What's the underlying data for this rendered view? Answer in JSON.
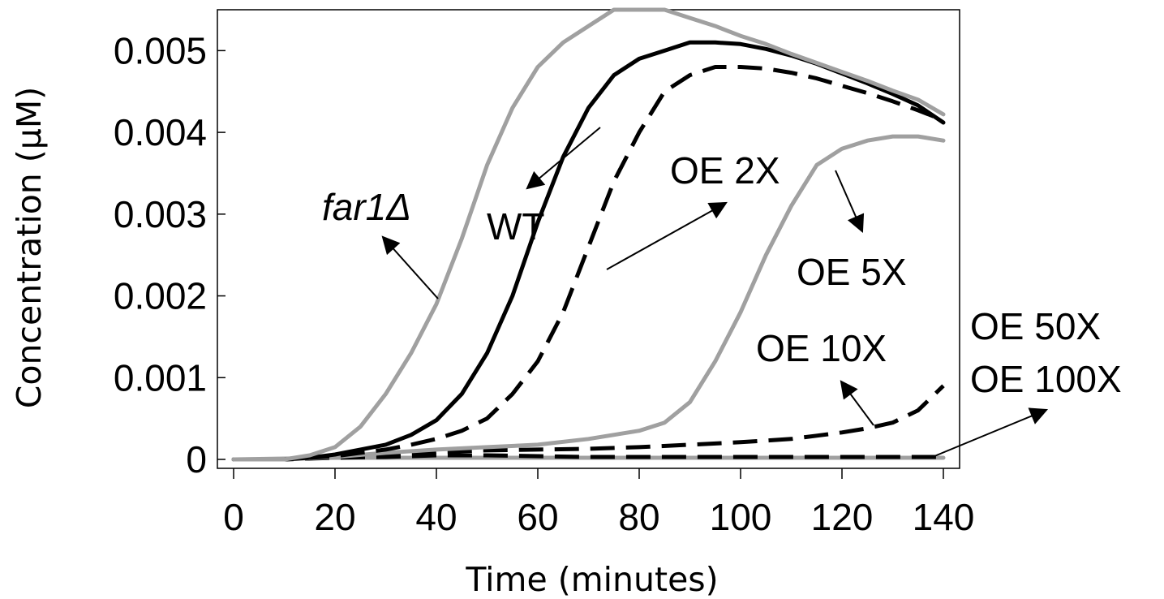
{
  "chart_data": {
    "type": "line",
    "title": "",
    "xlabel": "Time (minutes)",
    "ylabel": "Concentration (μM)",
    "xlim": [
      0,
      140
    ],
    "ylim": [
      0,
      0.0055
    ],
    "x_ticks": [
      "0",
      "20",
      "40",
      "60",
      "80",
      "100",
      "120",
      "140"
    ],
    "y_ticks": [
      "0",
      "0.001",
      "0.002",
      "0.003",
      "0.004",
      "0.005"
    ],
    "grid": false,
    "legend": "none",
    "series": [
      {
        "name": "far1Δ",
        "color": "#a0a0a0",
        "style": "solid",
        "points": [
          [
            0,
            0
          ],
          [
            10,
            0
          ],
          [
            15,
            5e-05
          ],
          [
            20,
            0.00015
          ],
          [
            25,
            0.0004
          ],
          [
            30,
            0.0008
          ],
          [
            35,
            0.0013
          ],
          [
            40,
            0.0019
          ],
          [
            45,
            0.0027
          ],
          [
            50,
            0.0036
          ],
          [
            55,
            0.0043
          ],
          [
            60,
            0.0048
          ],
          [
            65,
            0.0051
          ],
          [
            70,
            0.0053
          ],
          [
            75,
            0.0055
          ],
          [
            80,
            0.0055
          ],
          [
            85,
            0.0055
          ],
          [
            90,
            0.0054
          ],
          [
            95,
            0.0053
          ],
          [
            100,
            0.00518
          ],
          [
            105,
            0.00508
          ],
          [
            110,
            0.00496
          ],
          [
            115,
            0.00485
          ],
          [
            120,
            0.00474
          ],
          [
            125,
            0.00463
          ],
          [
            130,
            0.00451
          ],
          [
            135,
            0.0044
          ],
          [
            140,
            0.00422
          ]
        ]
      },
      {
        "name": "WT",
        "color": "#000000",
        "style": "solid",
        "points": [
          [
            0,
            0
          ],
          [
            10,
            0
          ],
          [
            15,
            2e-05
          ],
          [
            20,
            6e-05
          ],
          [
            25,
            0.00012
          ],
          [
            30,
            0.00018
          ],
          [
            35,
            0.0003
          ],
          [
            40,
            0.00048
          ],
          [
            45,
            0.0008
          ],
          [
            50,
            0.0013
          ],
          [
            55,
            0.002
          ],
          [
            60,
            0.0029
          ],
          [
            65,
            0.0037
          ],
          [
            70,
            0.0043
          ],
          [
            75,
            0.0047
          ],
          [
            80,
            0.0049
          ],
          [
            85,
            0.005
          ],
          [
            90,
            0.0051
          ],
          [
            95,
            0.0051
          ],
          [
            100,
            0.00508
          ],
          [
            105,
            0.00502
          ],
          [
            110,
            0.00494
          ],
          [
            115,
            0.00484
          ],
          [
            120,
            0.00472
          ],
          [
            125,
            0.0046
          ],
          [
            130,
            0.00447
          ],
          [
            135,
            0.00433
          ],
          [
            140,
            0.00412
          ]
        ]
      },
      {
        "name": "OE 2X",
        "color": "#000000",
        "style": "dashed",
        "points": [
          [
            0,
            0
          ],
          [
            10,
            0
          ],
          [
            15,
            2e-05
          ],
          [
            20,
            4e-05
          ],
          [
            25,
            8e-05
          ],
          [
            30,
            0.00012
          ],
          [
            35,
            0.00018
          ],
          [
            40,
            0.00025
          ],
          [
            45,
            0.00035
          ],
          [
            50,
            0.0005
          ],
          [
            55,
            0.0008
          ],
          [
            60,
            0.0012
          ],
          [
            65,
            0.0018
          ],
          [
            70,
            0.0026
          ],
          [
            75,
            0.0034
          ],
          [
            80,
            0.004
          ],
          [
            85,
            0.0045
          ],
          [
            90,
            0.0047
          ],
          [
            95,
            0.0048
          ],
          [
            100,
            0.0048
          ],
          [
            105,
            0.00478
          ],
          [
            110,
            0.00473
          ],
          [
            115,
            0.00466
          ],
          [
            120,
            0.00457
          ],
          [
            125,
            0.00448
          ],
          [
            130,
            0.00438
          ],
          [
            135,
            0.00427
          ],
          [
            140,
            0.00415
          ]
        ]
      },
      {
        "name": "OE 5X",
        "color": "#a0a0a0",
        "style": "solid",
        "points": [
          [
            0,
            0
          ],
          [
            10,
            0
          ],
          [
            20,
            3e-05
          ],
          [
            30,
            8e-05
          ],
          [
            40,
            0.00012
          ],
          [
            50,
            0.00015
          ],
          [
            60,
            0.00018
          ],
          [
            70,
            0.00025
          ],
          [
            80,
            0.00035
          ],
          [
            85,
            0.00045
          ],
          [
            90,
            0.0007
          ],
          [
            95,
            0.0012
          ],
          [
            100,
            0.0018
          ],
          [
            105,
            0.0025
          ],
          [
            110,
            0.0031
          ],
          [
            115,
            0.0036
          ],
          [
            120,
            0.0038
          ],
          [
            125,
            0.0039
          ],
          [
            130,
            0.00395
          ],
          [
            135,
            0.00395
          ],
          [
            140,
            0.0039
          ]
        ]
      },
      {
        "name": "OE 10X",
        "color": "#000000",
        "style": "dashed",
        "points": [
          [
            0,
            0
          ],
          [
            10,
            0
          ],
          [
            20,
            3e-05
          ],
          [
            30,
            6e-05
          ],
          [
            40,
            9e-05
          ],
          [
            50,
            0.00011
          ],
          [
            60,
            0.00012
          ],
          [
            70,
            0.00013
          ],
          [
            80,
            0.00015
          ],
          [
            90,
            0.00018
          ],
          [
            100,
            0.00021
          ],
          [
            110,
            0.00025
          ],
          [
            115,
            0.00029
          ],
          [
            120,
            0.00033
          ],
          [
            125,
            0.00038
          ],
          [
            130,
            0.00045
          ],
          [
            135,
            0.0006
          ],
          [
            140,
            0.0009
          ]
        ]
      },
      {
        "name": "OE 50X",
        "color": "#000000",
        "style": "dashed",
        "points": [
          [
            0,
            0
          ],
          [
            10,
            0
          ],
          [
            20,
            2e-05
          ],
          [
            30,
            3e-05
          ],
          [
            40,
            5e-05
          ],
          [
            50,
            5e-05
          ],
          [
            60,
            4e-05
          ],
          [
            70,
            3e-05
          ],
          [
            80,
            3e-05
          ],
          [
            100,
            3e-05
          ],
          [
            120,
            3e-05
          ],
          [
            140,
            3e-05
          ]
        ]
      },
      {
        "name": "OE 100X",
        "color": "#a0a0a0",
        "style": "solid",
        "points": [
          [
            0,
            0
          ],
          [
            20,
            2e-05
          ],
          [
            40,
            2e-05
          ],
          [
            60,
            2e-05
          ],
          [
            80,
            2e-05
          ],
          [
            100,
            2e-05
          ],
          [
            120,
            2e-05
          ],
          [
            140,
            2e-05
          ]
        ]
      }
    ],
    "annotations": [
      {
        "text": "far1Δ",
        "target": "far1Δ"
      },
      {
        "text": "WT",
        "target": "WT"
      },
      {
        "text": "OE 2X",
        "target": "OE 2X"
      },
      {
        "text": "OE 5X",
        "target": "OE 5X"
      },
      {
        "text": "OE 10X",
        "target": "OE 10X"
      },
      {
        "text": "OE 50X",
        "target": "OE 50X"
      },
      {
        "text": "OE 100X",
        "target": "OE 100X"
      }
    ]
  }
}
